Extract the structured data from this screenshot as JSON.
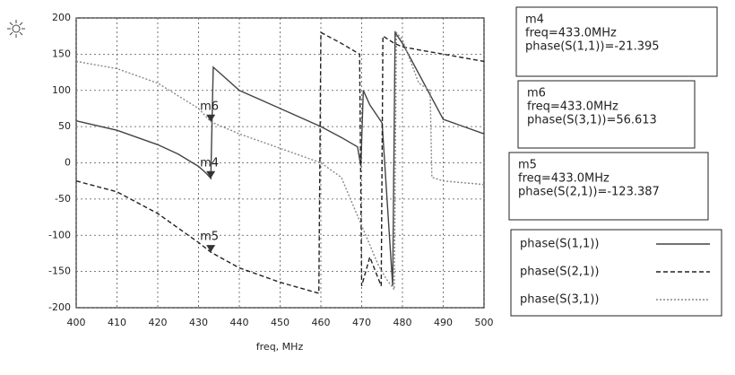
{
  "chart_data": {
    "type": "line",
    "xlabel": "freq, MHz",
    "xlim": [
      400,
      500
    ],
    "xticks": [
      400,
      410,
      420,
      430,
      440,
      450,
      460,
      470,
      480,
      490,
      500
    ],
    "ylim": [
      -200,
      200
    ],
    "yticks": [
      -200,
      -150,
      -100,
      -50,
      0,
      50,
      100,
      150,
      200
    ],
    "grid": true,
    "series": [
      {
        "name": "phase(S(1,1))",
        "color": "#444444",
        "dash": "solid",
        "x": [
          400,
          410,
          420,
          425,
          430,
          432,
          433,
          433.6,
          440,
          450,
          460,
          465,
          469,
          469.8,
          470.4,
          472,
          475,
          477.6,
          478.2,
          480,
          490,
          500
        ],
        "values": [
          58,
          45,
          25,
          12,
          -5,
          -15,
          -21.395,
          132,
          100,
          75,
          50,
          35,
          22,
          -5,
          100,
          80,
          55,
          -170,
          180,
          165,
          60,
          40
        ]
      },
      {
        "name": "phase(S(2,1))",
        "color": "#222222",
        "dash": "dashed",
        "x": [
          400,
          410,
          420,
          430,
          433,
          440,
          450,
          459.5,
          460,
          465,
          469.5,
          470,
          472,
          474.8,
          475.2,
          478,
          480,
          490,
          500
        ],
        "values": [
          -25,
          -40,
          -70,
          -110,
          -123.387,
          -145,
          -165,
          -180,
          180,
          165,
          150,
          -170,
          -130,
          -170,
          175,
          165,
          160,
          150,
          140
        ]
      },
      {
        "name": "phase(S(3,1))",
        "color": "#888888",
        "dash": "dotted",
        "x": [
          400,
          410,
          420,
          430,
          433,
          440,
          450,
          460,
          465,
          468,
          471,
          474,
          476,
          478,
          478.5,
          480,
          484,
          486.8,
          487.2,
          490,
          500
        ],
        "values": [
          140,
          130,
          110,
          75,
          56.613,
          40,
          20,
          0,
          -20,
          -60,
          -100,
          -140,
          -160,
          -175,
          180,
          170,
          110,
          100,
          -20,
          -25,
          -30
        ]
      }
    ],
    "markers": [
      {
        "name": "m4",
        "freq": "freq=433.0MHz",
        "readout": "phase(S(1,1))=-21.395",
        "x": 433,
        "y": -21.395
      },
      {
        "name": "m6",
        "freq": "freq=433.0MHz",
        "readout": "phase(S(3,1))=56.613",
        "x": 433,
        "y": 56.613
      },
      {
        "name": "m5",
        "freq": "freq=433.0MHz",
        "readout": "phase(S(2,1))=-123.387",
        "x": 433,
        "y": -123.387
      }
    ]
  }
}
